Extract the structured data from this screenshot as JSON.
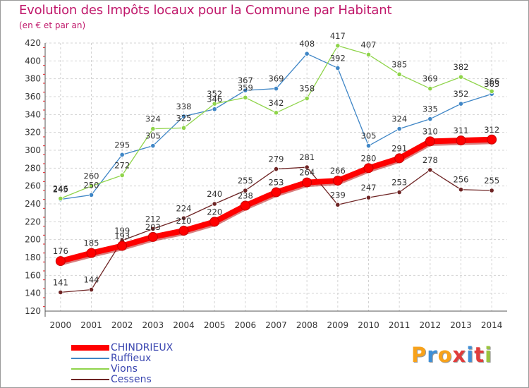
{
  "header": {
    "title": "Evolution des Impôts locaux pour la Commune par Habitant",
    "subtitle": "(en € et par an)"
  },
  "brand": {
    "letters": [
      "P",
      "r",
      "o",
      "x",
      "i",
      "t",
      "i"
    ],
    "colors": [
      "#f7a21b",
      "#3f8fd6",
      "#f7a21b",
      "#e03c3c",
      "#3f8fd6",
      "#e03c3c",
      "#9bc53d"
    ]
  },
  "chart_data": {
    "type": "line",
    "title": "Evolution des Impôts locaux pour la Commune par Habitant",
    "subtitle": "(en € et par an)",
    "x": [
      "2000",
      "2001",
      "2002",
      "2003",
      "2004",
      "2005",
      "2006",
      "2007",
      "2008",
      "2009",
      "2010",
      "2011",
      "2012",
      "2013",
      "2014"
    ],
    "ylim": [
      120,
      420
    ],
    "yticks": [
      120,
      140,
      160,
      180,
      200,
      220,
      240,
      260,
      280,
      300,
      320,
      340,
      360,
      380,
      400,
      420
    ],
    "grid": true,
    "legend_position": "bottom-left",
    "series": [
      {
        "name": "Ruffieux",
        "color": "#3f86c6",
        "values": [
          245,
          250,
          295,
          305,
          338,
          346,
          367,
          369,
          408,
          392,
          305,
          324,
          335,
          352,
          363
        ]
      },
      {
        "name": "Vions",
        "color": "#8fd44a",
        "values": [
          246,
          260,
          272,
          324,
          325,
          352,
          359,
          342,
          358,
          417,
          407,
          385,
          369,
          382,
          366
        ]
      },
      {
        "name": "Cessens",
        "color": "#6e2424",
        "values": [
          141,
          144,
          199,
          212,
          224,
          240,
          255,
          279,
          281,
          239,
          247,
          253,
          278,
          256,
          255
        ]
      },
      {
        "name": "CHINDRIEUX",
        "color": "#ff0000",
        "values": [
          176,
          185,
          193,
          203,
          210,
          220,
          238,
          253,
          264,
          266,
          280,
          291,
          310,
          311,
          312
        ]
      }
    ],
    "labels": [
      {
        "series": "Ruffieux",
        "text": [
          "245",
          "250",
          "295",
          "305",
          "338",
          "346",
          "367",
          "369",
          "408",
          "392",
          "305",
          "324",
          "335",
          "352",
          "363"
        ]
      },
      {
        "series": "Vions",
        "text": [
          "246",
          "260",
          "272",
          "324",
          "325",
          "352",
          "359",
          "342",
          "358",
          "417",
          "407",
          "385",
          "369",
          "382",
          "366"
        ]
      },
      {
        "series": "Cessens",
        "text": [
          "141",
          "144",
          "199",
          "212",
          "224",
          "240",
          "255",
          "279",
          "281",
          "239",
          "247",
          "253",
          "278",
          "256",
          "255"
        ]
      },
      {
        "series": "CHINDRIEUX",
        "text": [
          "176",
          "185",
          "193",
          "203",
          "210",
          "220",
          "238",
          "253",
          "264",
          "266",
          "280",
          "291",
          "310",
          "311",
          "312"
        ]
      }
    ]
  }
}
